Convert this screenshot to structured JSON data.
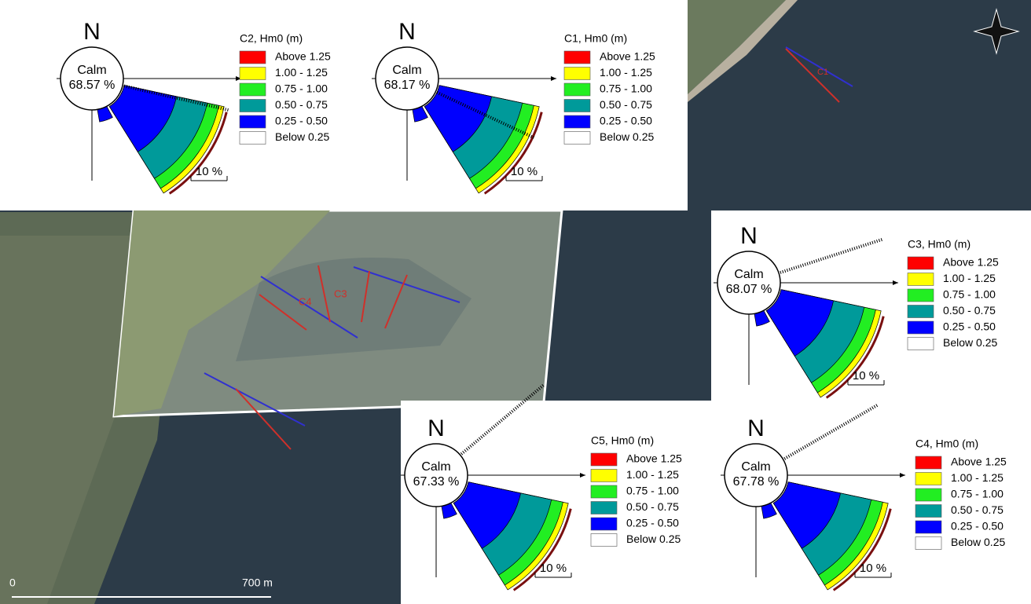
{
  "roses": [
    {
      "title": "C2, Hm0 (m)",
      "north": "N",
      "calm_label": "Calm",
      "calm": "68.57 %",
      "scale": "10 %",
      "legend": [
        "Above 1.25",
        "1.00 - 1.25",
        "0.75 - 1.00",
        "0.50 - 0.75",
        "0.25 - 0.50",
        "Below 0.25"
      ]
    },
    {
      "title": "C1, Hm0 (m)",
      "north": "N",
      "calm_label": "Calm",
      "calm": "68.17 %",
      "scale": "10 %",
      "legend": [
        "Above 1.25",
        "1.00 - 1.25",
        "0.75 - 1.00",
        "0.50 - 0.75",
        "0.25 - 0.50",
        "Below 0.25"
      ]
    },
    {
      "title": "C3, Hm0 (m)",
      "north": "N",
      "calm_label": "Calm",
      "calm": "68.07 %",
      "scale": "10 %",
      "legend": [
        "Above 1.25",
        "1.00 - 1.25",
        "0.75 - 1.00",
        "0.50 - 0.75",
        "0.25 - 0.50",
        "Below 0.25"
      ]
    },
    {
      "title": "C5, Hm0 (m)",
      "north": "N",
      "calm_label": "Calm",
      "calm": "67.33 %",
      "scale": "10 %",
      "legend": [
        "Above 1.25",
        "1.00 - 1.25",
        "0.75 - 1.00",
        "0.50 - 0.75",
        "0.25 - 0.50",
        "Below 0.25"
      ]
    },
    {
      "title": "C4, Hm0 (m)",
      "north": "N",
      "calm_label": "Calm",
      "calm": "67.78 %",
      "scale": "10 %",
      "legend": [
        "Above 1.25",
        "1.00 - 1.25",
        "0.75 - 1.00",
        "0.50 - 0.75",
        "0.25 - 0.50",
        "Below 0.25"
      ]
    }
  ],
  "map": {
    "scale_start": "0",
    "scale_end": "700 m",
    "site_labels": [
      "C4",
      "C3",
      "C1"
    ]
  }
}
